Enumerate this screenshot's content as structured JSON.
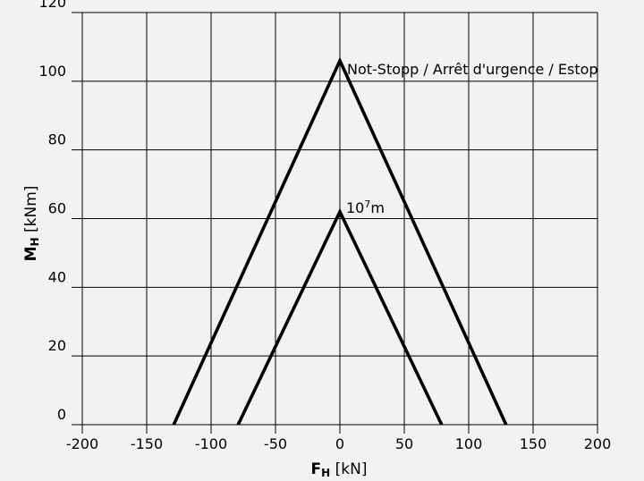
{
  "chart_data": {
    "type": "line",
    "xlim": [
      -200,
      200
    ],
    "ylim": [
      0,
      120
    ],
    "x_ticks": [
      "-200",
      "-150",
      "-100",
      "-50",
      "0",
      "50",
      "100",
      "150",
      "200"
    ],
    "y_ticks": [
      "0",
      "20",
      "40",
      "60",
      "80",
      "100",
      "120"
    ],
    "x_tick_values": [
      -200,
      -150,
      -100,
      -50,
      0,
      50,
      100,
      150,
      200
    ],
    "y_tick_values": [
      0,
      20,
      40,
      60,
      80,
      100,
      120
    ],
    "grid": true,
    "xlabel": {
      "symbol": "F",
      "subscript": "H",
      "unit": " [kN]"
    },
    "ylabel": {
      "symbol": "M",
      "subscript": "H",
      "unit": " [kNm]"
    },
    "series": [
      {
        "name": "Not-Stopp / Arrêt d'urgence / Estop",
        "x": [
          -129,
          0,
          129
        ],
        "y": [
          0,
          106,
          0
        ]
      },
      {
        "name": "107m",
        "x": [
          -79,
          0,
          79
        ],
        "y": [
          0,
          62,
          0
        ]
      }
    ]
  },
  "annotations": {
    "outer_label": "Not-Stopp / Arrêt d'urgence / Estop",
    "inner_label_prefix": "10",
    "inner_label_super": "7",
    "inner_label_suffix": "m"
  }
}
